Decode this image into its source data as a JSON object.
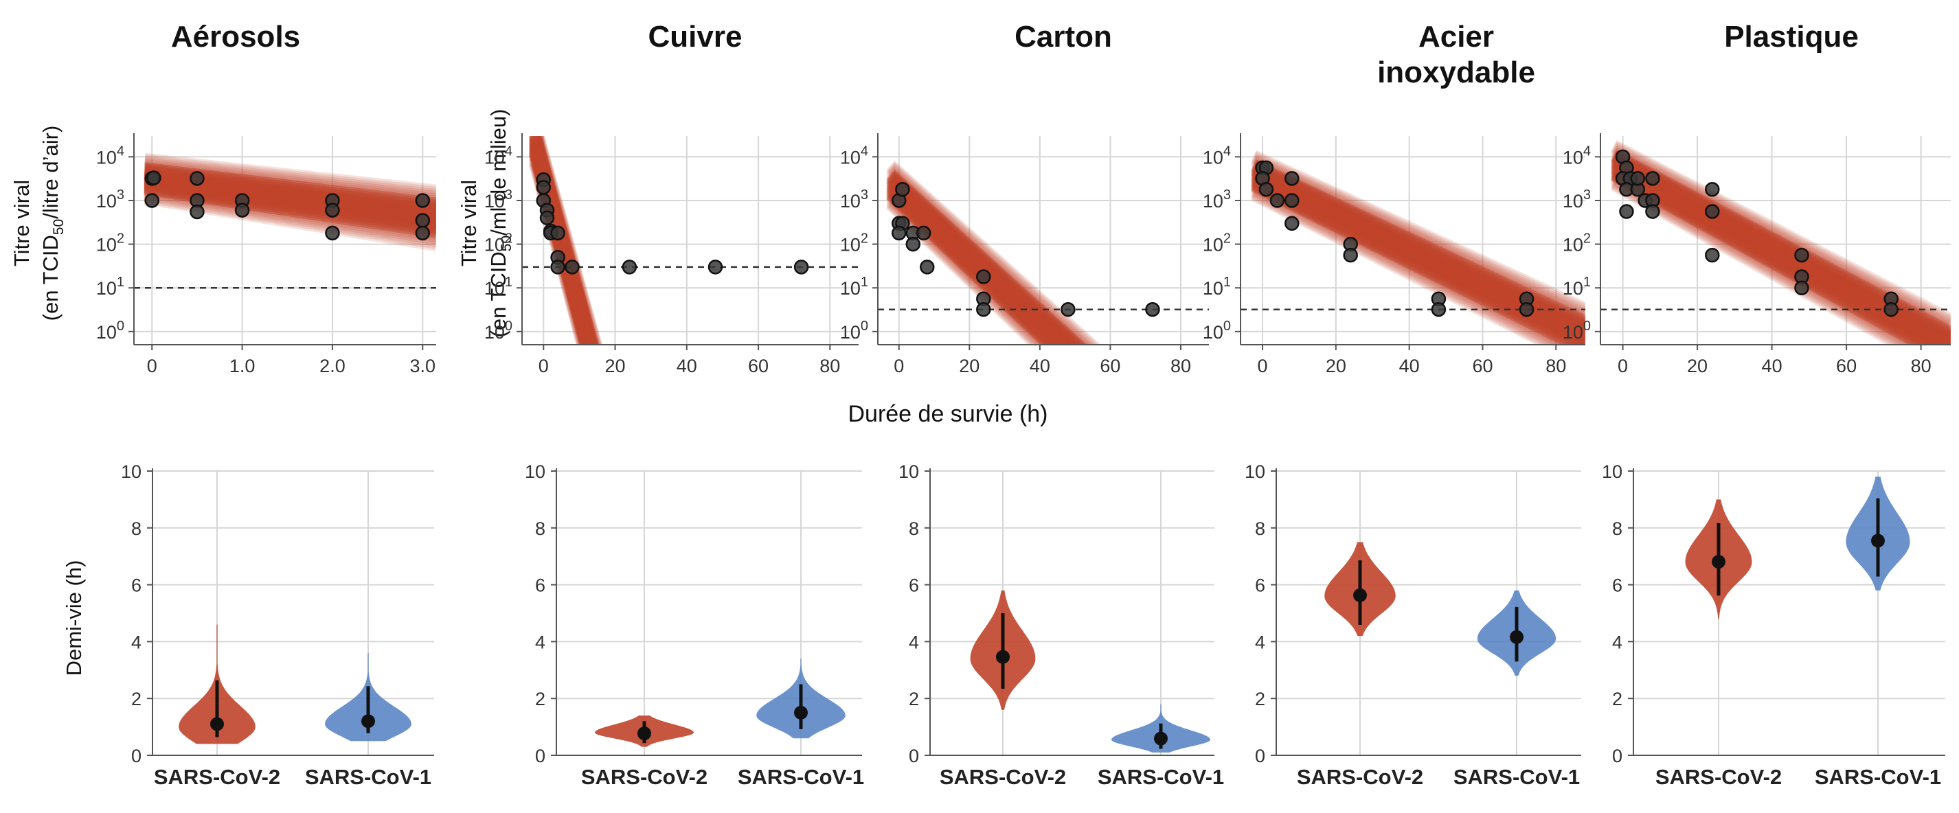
{
  "figure": {
    "x_axis_label": "Durée de survie (h)",
    "y_label_top_left_1": "Titre viral",
    "y_label_top_left_2": "(en TCID",
    "y_label_top_left_sub": "50",
    "y_label_top_left_3": "/litre d’air)",
    "y_label_top_right_1": "Titre viral",
    "y_label_top_right_2": "(en TCID",
    "y_label_top_right_sub": "50",
    "y_label_top_right_3": "/ml de milieu)",
    "y_label_bottom": "Demi-vie (h)"
  },
  "colors": {
    "sars_cov_2": "#c0442a",
    "sars_cov_1": "#5b86c5",
    "points": "#3a3a3a",
    "grid": "#d6d6d6",
    "dashed": "#333333"
  },
  "chart_data": [
    {
      "type": "scatter",
      "panel": "decay",
      "title": "Aérosols",
      "title_lines": [
        "Aérosols"
      ],
      "y_scale": "log10",
      "ylim": [
        0.5,
        30000
      ],
      "yticks": [
        1,
        10,
        100,
        1000,
        10000
      ],
      "ytick_labels": [
        "10^0",
        "10^1",
        "10^2",
        "10^3",
        "10^4"
      ],
      "xlim": [
        -0.2,
        3.15
      ],
      "xticks": [
        0,
        1,
        2,
        3
      ],
      "xtick_labels": [
        "0",
        "1.0",
        "2.0",
        "3.0"
      ],
      "detection_limit": 10,
      "fit": {
        "start": 3000,
        "end": 400
      },
      "points": [
        [
          0,
          3200
        ],
        [
          0.02,
          3300
        ],
        [
          0,
          1000
        ],
        [
          0.5,
          3200
        ],
        [
          0.5,
          1000
        ],
        [
          0.5,
          550
        ],
        [
          1.0,
          1000
        ],
        [
          1.0,
          600
        ],
        [
          2.0,
          1000
        ],
        [
          2.0,
          600
        ],
        [
          2.0,
          180
        ],
        [
          3.0,
          1000
        ],
        [
          3.0,
          350
        ],
        [
          3.0,
          180
        ]
      ]
    },
    {
      "type": "scatter",
      "panel": "decay",
      "title": "Cuivre",
      "title_lines": [
        "Cuivre"
      ],
      "y_scale": "log10",
      "ylim": [
        0.5,
        30000
      ],
      "yticks": [
        1,
        10,
        100,
        1000,
        10000
      ],
      "ytick_labels": [
        "10^0",
        "10^1",
        "10^2",
        "10^3",
        "10^4"
      ],
      "xlim": [
        -6,
        88
      ],
      "xticks": [
        0,
        20,
        40,
        60,
        80
      ],
      "xtick_labels": [
        "0",
        "20",
        "40",
        "60",
        "80"
      ],
      "detection_limit": 30,
      "fit": {
        "start": 3000,
        "end": 0.05,
        "end_x": 14
      },
      "points": [
        [
          0,
          3000
        ],
        [
          0,
          2000
        ],
        [
          0,
          1000
        ],
        [
          1,
          600
        ],
        [
          1,
          400
        ],
        [
          2,
          200
        ],
        [
          2,
          180
        ],
        [
          4,
          180
        ],
        [
          4,
          50
        ],
        [
          4,
          30
        ],
        [
          8,
          30
        ],
        [
          24,
          30
        ],
        [
          48,
          30
        ],
        [
          72,
          30
        ]
      ]
    },
    {
      "type": "scatter",
      "panel": "decay",
      "title": "Carton",
      "title_lines": [
        "Carton"
      ],
      "y_scale": "log10",
      "ylim": [
        0.5,
        30000
      ],
      "yticks": [
        1,
        10,
        100,
        1000,
        10000
      ],
      "ytick_labels": [
        "10^0",
        "10^1",
        "10^2",
        "10^3",
        "10^4"
      ],
      "xlim": [
        -6,
        88
      ],
      "xticks": [
        0,
        20,
        40,
        60,
        80
      ],
      "xtick_labels": [
        "0",
        "20",
        "40",
        "60",
        "80"
      ],
      "detection_limit": 3.2,
      "fit": {
        "start": 1500,
        "end": 0.05,
        "end_x": 58
      },
      "points": [
        [
          0,
          1000
        ],
        [
          1,
          1800
        ],
        [
          0,
          300
        ],
        [
          1,
          300
        ],
        [
          0,
          180
        ],
        [
          4,
          180
        ],
        [
          4,
          100
        ],
        [
          7,
          180
        ],
        [
          8,
          30
        ],
        [
          24,
          18
        ],
        [
          24,
          5.6
        ],
        [
          24,
          3.2
        ],
        [
          48,
          3.2
        ],
        [
          72,
          3.2
        ]
      ]
    },
    {
      "type": "scatter",
      "panel": "decay",
      "title": "Acier inoxydable",
      "title_lines": [
        "Acier",
        "inoxydable"
      ],
      "y_scale": "log10",
      "ylim": [
        0.5,
        30000
      ],
      "yticks": [
        1,
        10,
        100,
        1000,
        10000
      ],
      "ytick_labels": [
        "10^0",
        "10^1",
        "10^2",
        "10^3",
        "10^4"
      ],
      "xlim": [
        -6,
        88
      ],
      "xticks": [
        0,
        20,
        40,
        60,
        80
      ],
      "xtick_labels": [
        "0",
        "20",
        "40",
        "60",
        "80"
      ],
      "detection_limit": 3.2,
      "fit": {
        "start": 3000,
        "end": 0.8
      },
      "points": [
        [
          0,
          5600
        ],
        [
          1,
          5600
        ],
        [
          0,
          3200
        ],
        [
          1,
          1800
        ],
        [
          4,
          1000
        ],
        [
          8,
          1000
        ],
        [
          8,
          300
        ],
        [
          8,
          3200
        ],
        [
          24,
          100
        ],
        [
          24,
          56
        ],
        [
          48,
          5.6
        ],
        [
          48,
          3.2
        ],
        [
          72,
          5.6
        ],
        [
          72,
          3.2
        ]
      ]
    },
    {
      "type": "scatter",
      "panel": "decay",
      "title": "Plastique",
      "title_lines": [
        "Plastique"
      ],
      "y_scale": "log10",
      "ylim": [
        0.5,
        30000
      ],
      "yticks": [
        1,
        10,
        100,
        1000,
        10000
      ],
      "ytick_labels": [
        "10^0",
        "10^1",
        "10^2",
        "10^3",
        "10^4"
      ],
      "xlim": [
        -6,
        88
      ],
      "xticks": [
        0,
        20,
        40,
        60,
        80
      ],
      "xtick_labels": [
        "0",
        "20",
        "40",
        "60",
        "80"
      ],
      "detection_limit": 3.2,
      "fit": {
        "start": 5000,
        "end": 0.45
      },
      "points": [
        [
          0,
          10000
        ],
        [
          1,
          5600
        ],
        [
          0,
          3200
        ],
        [
          2,
          3200
        ],
        [
          1,
          1800
        ],
        [
          4,
          1800
        ],
        [
          4,
          3200
        ],
        [
          6,
          1000
        ],
        [
          8,
          3200
        ],
        [
          8,
          1000
        ],
        [
          8,
          560
        ],
        [
          1,
          560
        ],
        [
          24,
          1800
        ],
        [
          24,
          560
        ],
        [
          24,
          56
        ],
        [
          48,
          56
        ],
        [
          48,
          18
        ],
        [
          48,
          10
        ],
        [
          72,
          5.6
        ],
        [
          72,
          3.2
        ]
      ]
    },
    {
      "type": "violin",
      "panel": "half-life",
      "surface": "Aérosols",
      "ylim": [
        0,
        10
      ],
      "yticks": [
        0,
        2,
        4,
        6,
        8,
        10
      ],
      "categories": [
        "SARS-CoV-2",
        "SARS-CoV-1"
      ],
      "series": [
        {
          "name": "SARS-CoV-2",
          "median": 1.1,
          "ci": [
            0.64,
            2.64
          ],
          "mode": 1.0,
          "range": [
            0.4,
            4.6
          ]
        },
        {
          "name": "SARS-CoV-1",
          "median": 1.2,
          "ci": [
            0.78,
            2.43
          ],
          "mode": 1.1,
          "range": [
            0.5,
            3.6
          ]
        }
      ]
    },
    {
      "type": "violin",
      "panel": "half-life",
      "surface": "Cuivre",
      "ylim": [
        0,
        10
      ],
      "yticks": [
        0,
        2,
        4,
        6,
        8,
        10
      ],
      "categories": [
        "SARS-CoV-2",
        "SARS-CoV-1"
      ],
      "series": [
        {
          "name": "SARS-CoV-2",
          "median": 0.77,
          "ci": [
            0.43,
            1.2
          ],
          "mode": 0.8,
          "range": [
            0.3,
            1.4
          ]
        },
        {
          "name": "SARS-CoV-1",
          "median": 1.5,
          "ci": [
            0.92,
            2.5
          ],
          "mode": 1.4,
          "range": [
            0.6,
            3.4
          ]
        }
      ]
    },
    {
      "type": "violin",
      "panel": "half-life",
      "surface": "Carton",
      "ylim": [
        0,
        10
      ],
      "yticks": [
        0,
        2,
        4,
        6,
        8,
        10
      ],
      "categories": [
        "SARS-CoV-2",
        "SARS-CoV-1"
      ],
      "series": [
        {
          "name": "SARS-CoV-2",
          "median": 3.46,
          "ci": [
            2.34,
            5.0
          ],
          "mode": 3.4,
          "range": [
            1.6,
            5.8
          ]
        },
        {
          "name": "SARS-CoV-1",
          "median": 0.59,
          "ci": [
            0.23,
            1.12
          ],
          "mode": 0.55,
          "range": [
            0.1,
            1.8
          ]
        }
      ]
    },
    {
      "type": "violin",
      "panel": "half-life",
      "surface": "Acier inoxydable",
      "ylim": [
        0,
        10
      ],
      "yticks": [
        0,
        2,
        4,
        6,
        8,
        10
      ],
      "categories": [
        "SARS-CoV-2",
        "SARS-CoV-1"
      ],
      "series": [
        {
          "name": "SARS-CoV-2",
          "median": 5.63,
          "ci": [
            4.59,
            6.86
          ],
          "mode": 5.6,
          "range": [
            4.2,
            7.5
          ]
        },
        {
          "name": "SARS-CoV-1",
          "median": 4.16,
          "ci": [
            3.3,
            5.22
          ],
          "mode": 4.1,
          "range": [
            2.8,
            5.8
          ]
        }
      ]
    },
    {
      "type": "violin",
      "panel": "half-life",
      "surface": "Plastique",
      "ylim": [
        0,
        10
      ],
      "yticks": [
        0,
        2,
        4,
        6,
        8,
        10
      ],
      "categories": [
        "SARS-CoV-2",
        "SARS-CoV-1"
      ],
      "series": [
        {
          "name": "SARS-CoV-2",
          "median": 6.81,
          "ci": [
            5.62,
            8.17
          ],
          "mode": 6.8,
          "range": [
            4.8,
            9.0
          ]
        },
        {
          "name": "SARS-CoV-1",
          "median": 7.55,
          "ci": [
            6.29,
            9.04
          ],
          "mode": 7.5,
          "range": [
            5.8,
            9.8
          ]
        }
      ]
    }
  ]
}
